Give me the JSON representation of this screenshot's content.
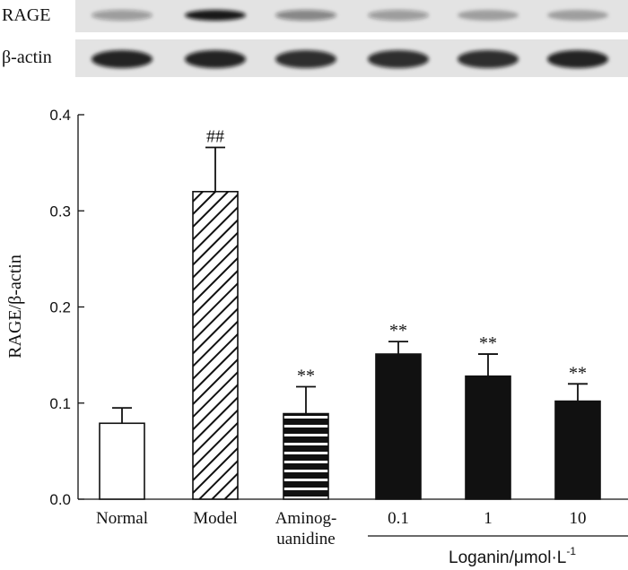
{
  "blot": {
    "rows": [
      {
        "label": "RAGE",
        "intensities": [
          0.35,
          0.95,
          0.45,
          0.35,
          0.3,
          0.3
        ]
      },
      {
        "label": "β-actin",
        "intensities": [
          0.9,
          0.9,
          0.85,
          0.85,
          0.85,
          0.9
        ]
      }
    ]
  },
  "chart_data": {
    "type": "bar",
    "title": "",
    "xlabel": "",
    "ylabel": "RAGE/β-actin",
    "ylim": [
      0,
      0.4
    ],
    "yticks": [
      "0.0",
      "0.1",
      "0.2",
      "0.3",
      "0.4"
    ],
    "categories": [
      "Normal",
      "Model",
      "Aminoguanidine",
      "0.1",
      "1",
      "10"
    ],
    "category_display": [
      [
        "Normal"
      ],
      [
        "Model"
      ],
      [
        "Aminog-",
        "uanidine"
      ],
      [
        "0.1"
      ],
      [
        "1"
      ],
      [
        "10"
      ]
    ],
    "values": [
      0.079,
      0.32,
      0.089,
      0.151,
      0.128,
      0.102
    ],
    "errors": [
      0.016,
      0.046,
      0.028,
      0.013,
      0.023,
      0.018
    ],
    "fills": [
      "white",
      "diagonal-hatch",
      "horizontal-stripes",
      "solid",
      "solid",
      "solid"
    ],
    "significance": [
      "",
      "##",
      "**",
      "**",
      "**",
      "**"
    ],
    "group_label": {
      "text": "Loganin/μmol·L",
      "superscript": "-1"
    }
  },
  "colors": {
    "ink": "#111111",
    "blot_band": "#111111",
    "blot_strip": "#e3e3e3",
    "bar_fill": "#111111",
    "bar_empty": "#ffffff"
  }
}
